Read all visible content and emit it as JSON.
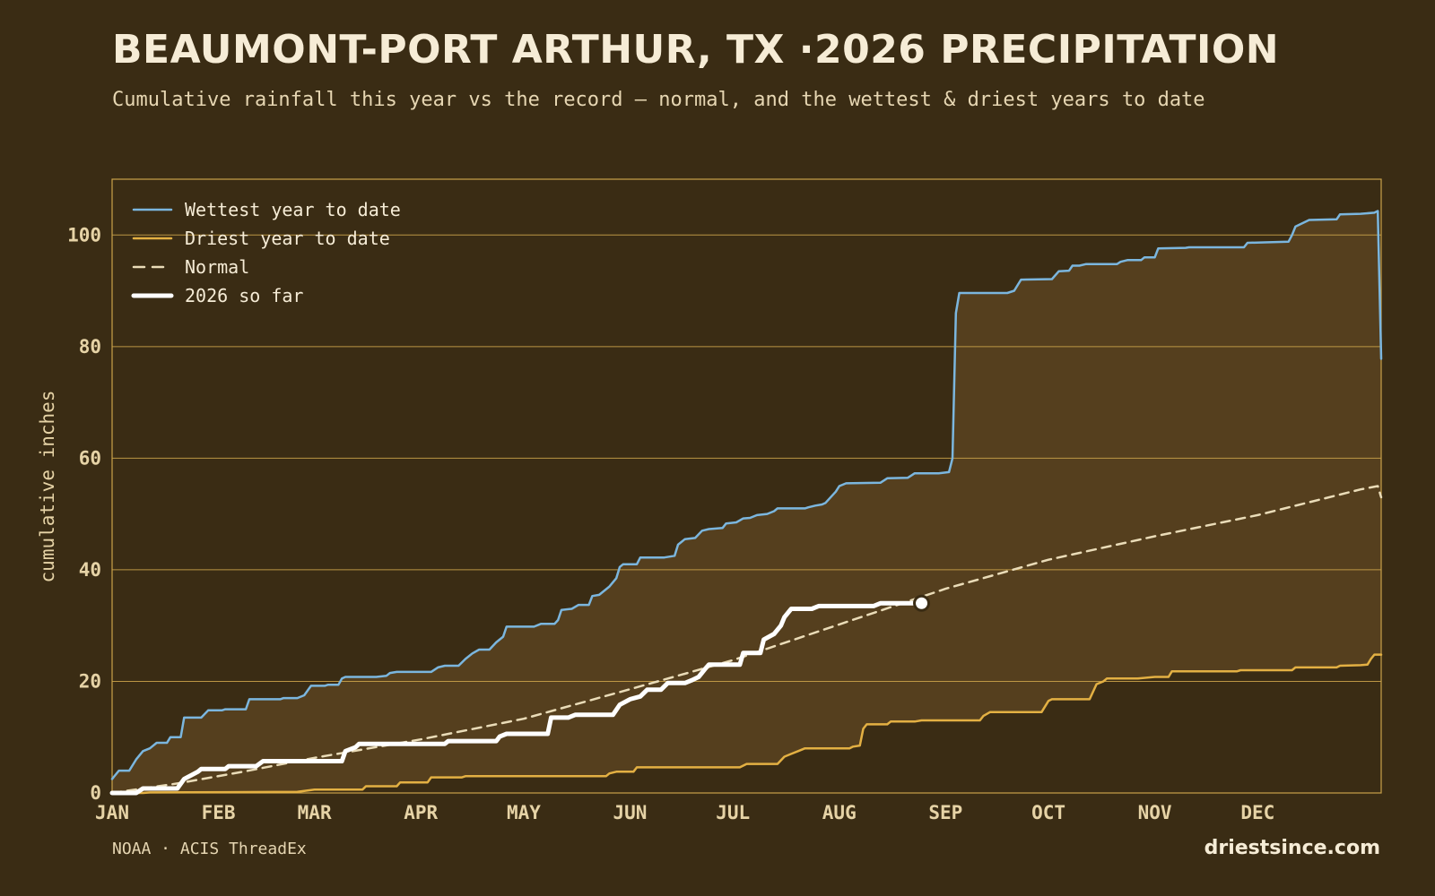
{
  "header": {
    "title": "BEAUMONT-PORT ARTHUR, TX ·2026 PRECIPITATION",
    "subtitle": "Cumulative rainfall this year vs the record — normal, and the wettest & driest years to date"
  },
  "footer": {
    "source": "NOAA · ACIS ThreadEx",
    "brand": "driestsince.com"
  },
  "colors": {
    "background": "#3a2c14",
    "band_fill": "#553f1e",
    "grid": "#c9a24a",
    "wettest": "#7bb6de",
    "driest": "#e3b043",
    "normal": "#eadcb8",
    "current": "#ffffff"
  },
  "chart_data": {
    "type": "line",
    "ylabel": "cumulative inches",
    "xlabel": "",
    "ylim": [
      0,
      110
    ],
    "yticks": [
      0,
      20,
      40,
      60,
      80,
      100
    ],
    "x_unit": "day of year",
    "xlim": [
      1,
      365
    ],
    "month_ticks": [
      {
        "label": "JAN",
        "day": 1
      },
      {
        "label": "FEB",
        "day": 32
      },
      {
        "label": "MAR",
        "day": 60
      },
      {
        "label": "APR",
        "day": 91
      },
      {
        "label": "MAY",
        "day": 121
      },
      {
        "label": "JUN",
        "day": 152
      },
      {
        "label": "JUL",
        "day": 182
      },
      {
        "label": "AUG",
        "day": 213
      },
      {
        "label": "SEP",
        "day": 244
      },
      {
        "label": "OCT",
        "day": 274
      },
      {
        "label": "NOV",
        "day": 305
      },
      {
        "label": "DEC",
        "day": 335
      }
    ],
    "grid": "horizontal",
    "legend_position": "top-left",
    "series": [
      {
        "name": "Wettest year to date",
        "key": "wettest",
        "points": [
          [
            1,
            2.5
          ],
          [
            3,
            4
          ],
          [
            6,
            4
          ],
          [
            8,
            6
          ],
          [
            10,
            7.5
          ],
          [
            12,
            8
          ],
          [
            14,
            9
          ],
          [
            17,
            9
          ],
          [
            18,
            10
          ],
          [
            21,
            10
          ],
          [
            22,
            13.5
          ],
          [
            27,
            13.5
          ],
          [
            29,
            14.8
          ],
          [
            33,
            14.8
          ],
          [
            34,
            15
          ],
          [
            40,
            15
          ],
          [
            41,
            16.8
          ],
          [
            50,
            16.8
          ],
          [
            51,
            17
          ],
          [
            55,
            17
          ],
          [
            57,
            17.5
          ],
          [
            59,
            19.2
          ],
          [
            63,
            19.2
          ],
          [
            64,
            19.4
          ],
          [
            67,
            19.4
          ],
          [
            68,
            20.5
          ],
          [
            69,
            20.8
          ],
          [
            78,
            20.8
          ],
          [
            81,
            21
          ],
          [
            82,
            21.5
          ],
          [
            84,
            21.7
          ],
          [
            94,
            21.7
          ],
          [
            96,
            22.5
          ],
          [
            98,
            22.8
          ],
          [
            102,
            22.8
          ],
          [
            104,
            24
          ],
          [
            106,
            25
          ],
          [
            108,
            25.7
          ],
          [
            111,
            25.7
          ],
          [
            113,
            27
          ],
          [
            115,
            28
          ],
          [
            116,
            29.8
          ],
          [
            124,
            29.8
          ],
          [
            126,
            30.3
          ],
          [
            130,
            30.3
          ],
          [
            131,
            31
          ],
          [
            132,
            32.8
          ],
          [
            135,
            33
          ],
          [
            137,
            33.7
          ],
          [
            140,
            33.7
          ],
          [
            141,
            35.3
          ],
          [
            143,
            35.5
          ],
          [
            146,
            37
          ],
          [
            148,
            38.5
          ],
          [
            149,
            40.5
          ],
          [
            150,
            41
          ],
          [
            154,
            41
          ],
          [
            155,
            42.2
          ],
          [
            162,
            42.2
          ],
          [
            165,
            42.5
          ],
          [
            166,
            44.5
          ],
          [
            168,
            45.5
          ],
          [
            171,
            45.7
          ],
          [
            173,
            47
          ],
          [
            175,
            47.3
          ],
          [
            179,
            47.5
          ],
          [
            180,
            48.3
          ],
          [
            183,
            48.5
          ],
          [
            185,
            49.2
          ],
          [
            187,
            49.3
          ],
          [
            189,
            49.8
          ],
          [
            192,
            50
          ],
          [
            194,
            50.5
          ],
          [
            195,
            51
          ],
          [
            203,
            51
          ],
          [
            204,
            51.2
          ],
          [
            206,
            51.5
          ],
          [
            208,
            51.7
          ],
          [
            209,
            52
          ],
          [
            212,
            54
          ],
          [
            213,
            55
          ],
          [
            215,
            55.5
          ],
          [
            225,
            55.6
          ],
          [
            227,
            56.4
          ],
          [
            233,
            56.5
          ],
          [
            235,
            57.3
          ],
          [
            242,
            57.3
          ],
          [
            245,
            57.5
          ],
          [
            246,
            60
          ],
          [
            247,
            86
          ],
          [
            248,
            89.6
          ],
          [
            262,
            89.6
          ],
          [
            264,
            90
          ],
          [
            266,
            92
          ],
          [
            275,
            92.1
          ],
          [
            277,
            93.5
          ],
          [
            280,
            93.6
          ],
          [
            281,
            94.5
          ],
          [
            283,
            94.5
          ],
          [
            285,
            94.8
          ],
          [
            294,
            94.8
          ],
          [
            295,
            95.2
          ],
          [
            297,
            95.5
          ],
          [
            301,
            95.5
          ],
          [
            302,
            96
          ],
          [
            305,
            96
          ],
          [
            306,
            97.6
          ],
          [
            314,
            97.7
          ],
          [
            315,
            97.8
          ],
          [
            331,
            97.8
          ],
          [
            332,
            98.6
          ],
          [
            344,
            98.8
          ],
          [
            345,
            100
          ],
          [
            346,
            101.5
          ],
          [
            350,
            102.7
          ],
          [
            358,
            102.8
          ],
          [
            359,
            103.7
          ],
          [
            365,
            103.8
          ],
          [
            369,
            104
          ],
          [
            370,
            104.3
          ],
          [
            371,
            77.8
          ]
        ]
      },
      {
        "name": "Driest year to date",
        "key": "driest",
        "points": [
          [
            1,
            0
          ],
          [
            10,
            0
          ],
          [
            12,
            0.1
          ],
          [
            55,
            0.2
          ],
          [
            60,
            0.6
          ],
          [
            74,
            0.6
          ],
          [
            75,
            1.2
          ],
          [
            84,
            1.2
          ],
          [
            85,
            1.9
          ],
          [
            93,
            1.9
          ],
          [
            94,
            2.8
          ],
          [
            103,
            2.8
          ],
          [
            104,
            3
          ],
          [
            145,
            3
          ],
          [
            146,
            3.5
          ],
          [
            148,
            3.8
          ],
          [
            153,
            3.8
          ],
          [
            154,
            4.6
          ],
          [
            184,
            4.6
          ],
          [
            185,
            4.9
          ],
          [
            186,
            5.2
          ],
          [
            195,
            5.2
          ],
          [
            197,
            6.5
          ],
          [
            199,
            7
          ],
          [
            201,
            7.5
          ],
          [
            203,
            8
          ],
          [
            216,
            8
          ],
          [
            217,
            8.3
          ],
          [
            219,
            8.5
          ],
          [
            220,
            11.5
          ],
          [
            221,
            12.3
          ],
          [
            227,
            12.3
          ],
          [
            228,
            12.8
          ],
          [
            235,
            12.8
          ],
          [
            237,
            13
          ],
          [
            254,
            13
          ],
          [
            255,
            13.8
          ],
          [
            257,
            14.5
          ],
          [
            272,
            14.5
          ],
          [
            274,
            16.5
          ],
          [
            275,
            16.8
          ],
          [
            286,
            16.8
          ],
          [
            288,
            19.5
          ],
          [
            290,
            20
          ],
          [
            291,
            20.5
          ],
          [
            300,
            20.5
          ],
          [
            305,
            20.8
          ],
          [
            309,
            20.8
          ],
          [
            310,
            21.8
          ],
          [
            329,
            21.8
          ],
          [
            330,
            22
          ],
          [
            345,
            22
          ],
          [
            346,
            22.5
          ],
          [
            358,
            22.5
          ],
          [
            359,
            22.8
          ],
          [
            365,
            22.9
          ],
          [
            367,
            23
          ],
          [
            368,
            24
          ],
          [
            369,
            24.8
          ],
          [
            371,
            24.8
          ]
        ]
      },
      {
        "name": "Normal",
        "key": "normal",
        "points": [
          [
            1,
            0
          ],
          [
            20,
            1.7
          ],
          [
            40,
            3.9
          ],
          [
            60,
            6.3
          ],
          [
            91,
            9.6
          ],
          [
            121,
            13.3
          ],
          [
            152,
            18.6
          ],
          [
            182,
            23.8
          ],
          [
            213,
            30.2
          ],
          [
            244,
            36.6
          ],
          [
            274,
            41.8
          ],
          [
            305,
            46
          ],
          [
            335,
            49.8
          ],
          [
            365,
            54.4
          ],
          [
            370,
            55
          ],
          [
            371,
            53
          ]
        ]
      },
      {
        "name": "2026 so far",
        "key": "current",
        "points": [
          [
            1,
            0
          ],
          [
            8,
            0
          ],
          [
            10,
            0.8
          ],
          [
            20,
            0.8
          ],
          [
            22,
            2.5
          ],
          [
            26,
            3.8
          ],
          [
            27,
            4.3
          ],
          [
            34,
            4.3
          ],
          [
            35,
            4.8
          ],
          [
            43,
            4.8
          ],
          [
            45,
            5.7
          ],
          [
            68,
            5.7
          ],
          [
            69,
            7.5
          ],
          [
            72,
            8.2
          ],
          [
            73,
            8.8
          ],
          [
            98,
            8.8
          ],
          [
            99,
            9.3
          ],
          [
            113,
            9.3
          ],
          [
            114,
            10.1
          ],
          [
            116,
            10.6
          ],
          [
            128,
            10.6
          ],
          [
            129,
            13.5
          ],
          [
            134,
            13.5
          ],
          [
            136,
            14
          ],
          [
            147,
            14
          ],
          [
            149,
            15.8
          ],
          [
            152,
            16.8
          ],
          [
            155,
            17.3
          ],
          [
            157,
            18.5
          ],
          [
            161,
            18.5
          ],
          [
            163,
            19.7
          ],
          [
            168,
            19.7
          ],
          [
            170,
            20.2
          ],
          [
            172,
            20.8
          ],
          [
            174,
            22.3
          ],
          [
            175,
            23
          ],
          [
            184,
            23
          ],
          [
            185,
            25.1
          ],
          [
            190,
            25.1
          ],
          [
            191,
            27.5
          ],
          [
            194,
            28.5
          ],
          [
            196,
            30
          ],
          [
            197,
            31.5
          ],
          [
            199,
            33
          ],
          [
            205,
            33
          ],
          [
            207,
            33.5
          ],
          [
            223,
            33.5
          ],
          [
            225,
            34
          ],
          [
            237,
            34
          ]
        ]
      }
    ],
    "current_marker": {
      "day": 237,
      "value": 34
    }
  }
}
